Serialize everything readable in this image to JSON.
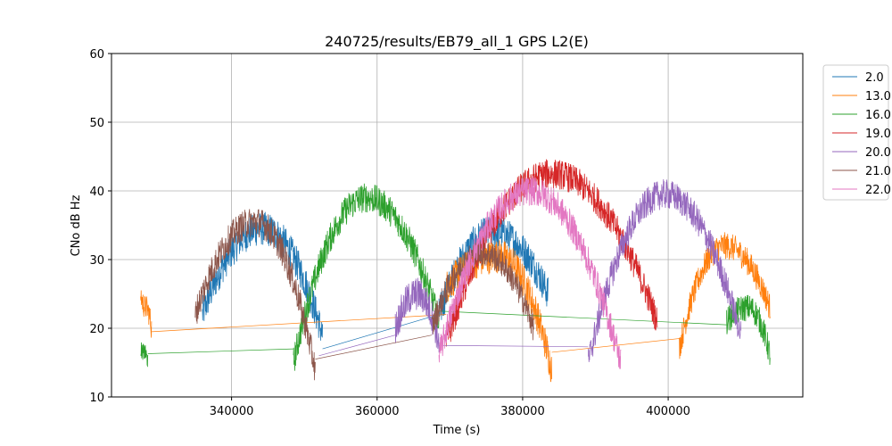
{
  "chart_data": {
    "type": "line",
    "title": "240725/results/EB79_all_1 GPS L2(E)",
    "xlabel": "Time (s)",
    "ylabel": "CNo dB Hz",
    "xlim": [
      323500,
      418500
    ],
    "ylim": [
      10,
      60
    ],
    "xticks": [
      340000,
      360000,
      380000,
      400000
    ],
    "xtick_labels": [
      "340000",
      "360000",
      "380000",
      "400000"
    ],
    "yticks": [
      10,
      20,
      30,
      40,
      50,
      60
    ],
    "ytick_labels": [
      "10",
      "20",
      "30",
      "40",
      "50",
      "60"
    ],
    "grid": true,
    "legend_position": "outside-top-right",
    "series": [
      {
        "name": "2.0",
        "color": "#1f77b4",
        "arcs": [
          {
            "x0": 336000,
            "x1": 352500,
            "peak": 34.5,
            "y0": 22,
            "y1": 19,
            "noise": 2.5
          },
          {
            "x0": 368500,
            "x1": 383500,
            "peak": 34.0,
            "y0": 22,
            "y1": 25,
            "noise": 2.5
          }
        ],
        "connectors": [
          [
            352500,
            17,
            368500,
            22
          ]
        ]
      },
      {
        "name": "13.0",
        "color": "#ff7f0e",
        "arcs": [
          {
            "x0": 327500,
            "x1": 329000,
            "peak": 23,
            "y0": 25,
            "y1": 20,
            "noise": 1.8
          },
          {
            "x0": 369500,
            "x1": 384000,
            "peak": 30.5,
            "y0": 26,
            "y1": 14,
            "noise": 2.5
          },
          {
            "x0": 401500,
            "x1": 414000,
            "peak": 32.0,
            "y0": 17,
            "y1": 23,
            "noise": 2.0
          }
        ],
        "connectors": [
          [
            329000,
            19.5,
            369500,
            22
          ],
          [
            384000,
            16.5,
            401500,
            18.5
          ]
        ]
      },
      {
        "name": "16.0",
        "color": "#2ca02c",
        "arcs": [
          {
            "x0": 327500,
            "x1": 328500,
            "peak": 16.5,
            "y0": 17,
            "y1": 15,
            "noise": 1.2
          },
          {
            "x0": 348500,
            "x1": 368500,
            "peak": 39.0,
            "y0": 15,
            "y1": 21,
            "noise": 2.2
          },
          {
            "x0": 408000,
            "x1": 414000,
            "peak": 23.0,
            "y0": 21,
            "y1": 16,
            "noise": 2.0
          }
        ],
        "connectors": [
          [
            328500,
            16.3,
            348500,
            17
          ],
          [
            368500,
            22.5,
            408000,
            20.5
          ]
        ]
      },
      {
        "name": "19.0",
        "color": "#d62728",
        "arcs": [
          {
            "x0": 369500,
            "x1": 398500,
            "peak": 42.5,
            "y0": 18,
            "y1": 21,
            "noise": 2.2
          }
        ],
        "connectors": []
      },
      {
        "name": "20.0",
        "color": "#9467bd",
        "arcs": [
          {
            "x0": 362500,
            "x1": 368500,
            "peak": 25.0,
            "y0": 20,
            "y1": 18,
            "noise": 2.5
          },
          {
            "x0": 389000,
            "x1": 410000,
            "peak": 39.5,
            "y0": 15,
            "y1": 19,
            "noise": 2.2
          }
        ],
        "connectors": [
          [
            352000,
            16,
            362500,
            19
          ],
          [
            368500,
            17.5,
            389000,
            17.3
          ]
        ]
      },
      {
        "name": "21.0",
        "color": "#8c564b",
        "arcs": [
          {
            "x0": 335000,
            "x1": 351500,
            "peak": 35.5,
            "y0": 22,
            "y1": 14,
            "noise": 2.2
          },
          {
            "x0": 367500,
            "x1": 381500,
            "peak": 31.0,
            "y0": 20,
            "y1": 20,
            "noise": 2.0
          }
        ],
        "connectors": [
          [
            351500,
            15.5,
            367500,
            19
          ]
        ]
      },
      {
        "name": "22.0",
        "color": "#e377c2",
        "arcs": [
          {
            "x0": 368500,
            "x1": 393500,
            "peak": 40.0,
            "y0": 16,
            "y1": 15,
            "noise": 2.2
          }
        ],
        "connectors": []
      }
    ]
  }
}
